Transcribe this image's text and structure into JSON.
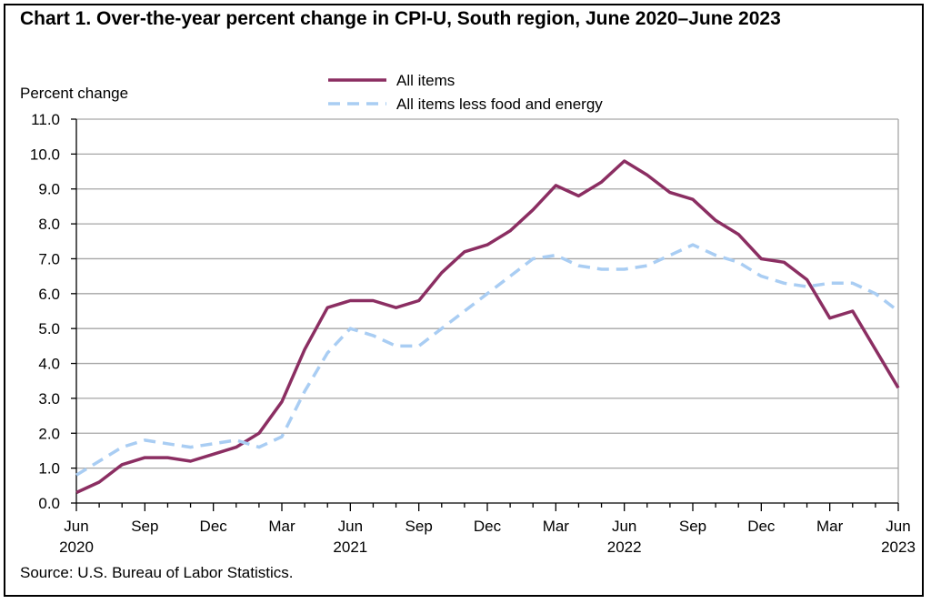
{
  "title": "Chart 1. Over-the-year percent change in CPI-U, South region, June 2020–June 2023",
  "source": "Source: U.S. Bureau of Labor Statistics.",
  "colors": {
    "all_items": "#8b2e62",
    "core": "#a9cdf3",
    "grid": "#a6a6a6",
    "axis": "#000000"
  },
  "chart_data": {
    "type": "line",
    "ylabel": "Percent change",
    "xlabel": "",
    "ylim": [
      0,
      11
    ],
    "yticks": [
      "0.0",
      "1.0",
      "2.0",
      "3.0",
      "4.0",
      "5.0",
      "6.0",
      "7.0",
      "8.0",
      "9.0",
      "10.0",
      "11.0"
    ],
    "grid": true,
    "legend_position": "top-center",
    "x": [
      "2020-06",
      "2020-07",
      "2020-08",
      "2020-09",
      "2020-10",
      "2020-11",
      "2020-12",
      "2021-01",
      "2021-02",
      "2021-03",
      "2021-04",
      "2021-05",
      "2021-06",
      "2021-07",
      "2021-08",
      "2021-09",
      "2021-10",
      "2021-11",
      "2021-12",
      "2022-01",
      "2022-02",
      "2022-03",
      "2022-04",
      "2022-05",
      "2022-06",
      "2022-07",
      "2022-08",
      "2022-09",
      "2022-10",
      "2022-11",
      "2022-12",
      "2023-01",
      "2023-02",
      "2023-03",
      "2023-04",
      "2023-05",
      "2023-06"
    ],
    "xtick_labels": [
      {
        "month": "Jun",
        "year": "2020"
      },
      {
        "month": "Sep",
        "year": ""
      },
      {
        "month": "Dec",
        "year": ""
      },
      {
        "month": "Mar",
        "year": ""
      },
      {
        "month": "Jun",
        "year": "2021"
      },
      {
        "month": "Sep",
        "year": ""
      },
      {
        "month": "Dec",
        "year": ""
      },
      {
        "month": "Mar",
        "year": ""
      },
      {
        "month": "Jun",
        "year": "2022"
      },
      {
        "month": "Sep",
        "year": ""
      },
      {
        "month": "Dec",
        "year": ""
      },
      {
        "month": "Mar",
        "year": ""
      },
      {
        "month": "Jun",
        "year": "2023"
      }
    ],
    "series": [
      {
        "name": "All items",
        "style": "solid",
        "values": [
          0.3,
          0.6,
          1.1,
          1.3,
          1.3,
          1.2,
          1.4,
          1.6,
          2.0,
          2.9,
          4.4,
          5.6,
          5.8,
          5.8,
          5.6,
          5.8,
          6.6,
          7.2,
          7.4,
          7.8,
          8.4,
          9.1,
          8.8,
          9.2,
          9.8,
          9.4,
          8.9,
          8.7,
          8.1,
          7.7,
          7.0,
          6.9,
          6.4,
          5.3,
          5.5,
          4.4,
          3.3
        ]
      },
      {
        "name": "All items less food and energy",
        "style": "dashed",
        "values": [
          0.8,
          1.2,
          1.6,
          1.8,
          1.7,
          1.6,
          1.7,
          1.8,
          1.6,
          1.9,
          3.2,
          4.3,
          5.0,
          4.8,
          4.5,
          4.5,
          5.0,
          5.5,
          6.0,
          6.5,
          7.0,
          7.1,
          6.8,
          6.7,
          6.7,
          6.8,
          7.1,
          7.4,
          7.1,
          6.9,
          6.5,
          6.3,
          6.2,
          6.3,
          6.3,
          6.0,
          5.5
        ]
      }
    ]
  }
}
